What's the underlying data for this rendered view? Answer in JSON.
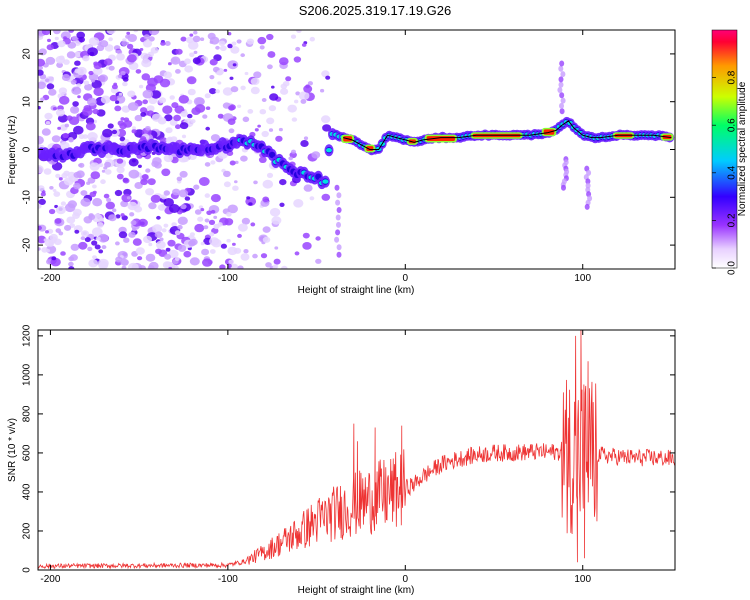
{
  "title": "S206.2025.319.17.19.G26",
  "chart_data": [
    {
      "type": "heatmap",
      "name": "spectrogram",
      "xlabel": "Height of straight line (km)",
      "ylabel": "Frequency (Hz)",
      "xlim": [
        -207,
        152
      ],
      "ylim": [
        -25,
        25
      ],
      "xticks": [
        -200,
        -100,
        0,
        100
      ],
      "yticks": [
        -20,
        -10,
        0,
        10,
        20
      ],
      "colorbar": {
        "label": "Normalized spectral amplitude",
        "range": [
          0,
          1
        ],
        "ticks": [
          0.0,
          0.2,
          0.4,
          0.6,
          0.8
        ],
        "tick_labels": [
          "0.0",
          "0.2",
          "0.4",
          "0.6",
          "0.8"
        ]
      },
      "ridge": {
        "x": [
          -200,
          -190,
          -180,
          -170,
          -160,
          -150,
          -140,
          -130,
          -120,
          -110,
          -100,
          -95,
          -90,
          -85,
          -80,
          -75,
          -70,
          -65,
          -60,
          -55,
          -50,
          -45,
          -42,
          -38,
          -35,
          -30,
          -25,
          -20,
          -15,
          -10,
          -5,
          0,
          5,
          10,
          20,
          30,
          40,
          50,
          60,
          70,
          80,
          85,
          88,
          92,
          95,
          100,
          105,
          110,
          120,
          130,
          140,
          150
        ],
        "y": [
          -1,
          -1,
          0,
          0,
          0,
          0.5,
          0.5,
          0,
          0,
          0.5,
          1,
          1.5,
          2,
          1.5,
          0,
          -1.5,
          -3,
          -4,
          -5,
          -5.5,
          -6,
          -7,
          3,
          3,
          2.5,
          2,
          1,
          0,
          0,
          3,
          2.5,
          2,
          1.5,
          2,
          2.5,
          2.5,
          3,
          3,
          3,
          3,
          3.5,
          4,
          5,
          6,
          4.5,
          3,
          2.5,
          2.5,
          3,
          3,
          3,
          2.5
        ]
      }
    },
    {
      "type": "line",
      "name": "snr",
      "xlabel": "Height of straight line (km)",
      "ylabel": "SNR (10 * v/v)",
      "xlim": [
        -207,
        152
      ],
      "ylim": [
        0,
        1230
      ],
      "xticks": [
        -200,
        -100,
        0,
        100
      ],
      "yticks": [
        0,
        200,
        400,
        600,
        800,
        1000,
        1200
      ],
      "color": "#ee3333",
      "trend": {
        "x": [
          -207,
          -100,
          -90,
          -80,
          -70,
          -60,
          -50,
          -40,
          -30,
          -20,
          -10,
          0,
          5,
          10,
          20,
          30,
          40,
          50,
          60,
          70,
          80,
          90,
          110,
          120,
          130,
          140,
          152
        ],
        "y": [
          20,
          25,
          45,
          90,
          140,
          190,
          250,
          290,
          330,
          360,
          390,
          420,
          440,
          480,
          540,
          570,
          590,
          600,
          600,
          605,
          605,
          605,
          590,
          580,
          575,
          575,
          570
        ]
      },
      "spikes": [
        {
          "x": -29,
          "y": 750
        },
        {
          "x": -27,
          "y": 660
        },
        {
          "x": -17,
          "y": 730
        },
        {
          "x": -2,
          "y": 740
        },
        {
          "x": 96,
          "y": 1200
        },
        {
          "x": 99,
          "y": 1240
        },
        {
          "x": 103,
          "y": 1070
        },
        {
          "x": 97,
          "y": 40
        },
        {
          "x": 101,
          "y": 60
        }
      ]
    }
  ]
}
